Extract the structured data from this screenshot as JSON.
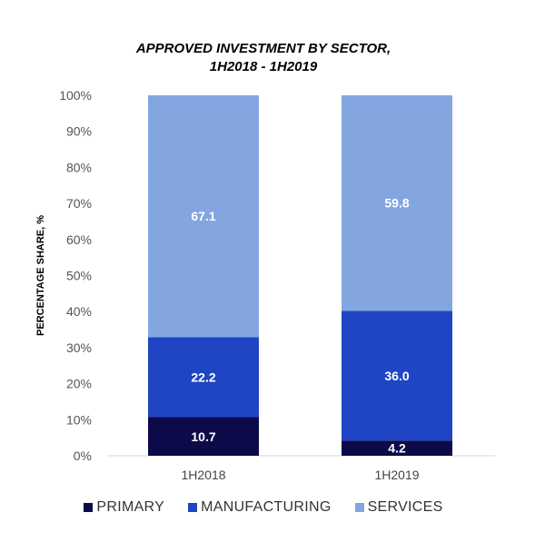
{
  "title_line1": "APPROVED INVESTMENT BY SECTOR,",
  "title_line2": "1H2018 - 1H2019",
  "chart_data": {
    "type": "bar",
    "stacked": true,
    "categories": [
      "1H2018",
      "1H2019"
    ],
    "series": [
      {
        "name": "PRIMARY",
        "values": [
          10.7,
          4.2
        ],
        "color": "#0d0a4a"
      },
      {
        "name": "MANUFACTURING",
        "values": [
          22.2,
          36.0
        ],
        "color": "#1f45c4"
      },
      {
        "name": "SERVICES",
        "values": [
          67.1,
          59.8
        ],
        "color": "#84a6e0"
      }
    ],
    "data_labels": [
      [
        "10.7",
        "4.2"
      ],
      [
        "22.2",
        "36.0"
      ],
      [
        "67.1",
        "59.8"
      ]
    ],
    "ylabel": "PERCENTAGE SHARE, %",
    "ylim": [
      0,
      100
    ],
    "yticks": [
      "0%",
      "10%",
      "20%",
      "30%",
      "40%",
      "50%",
      "60%",
      "70%",
      "80%",
      "90%",
      "100%"
    ],
    "legend_position": "bottom",
    "grid": false
  }
}
